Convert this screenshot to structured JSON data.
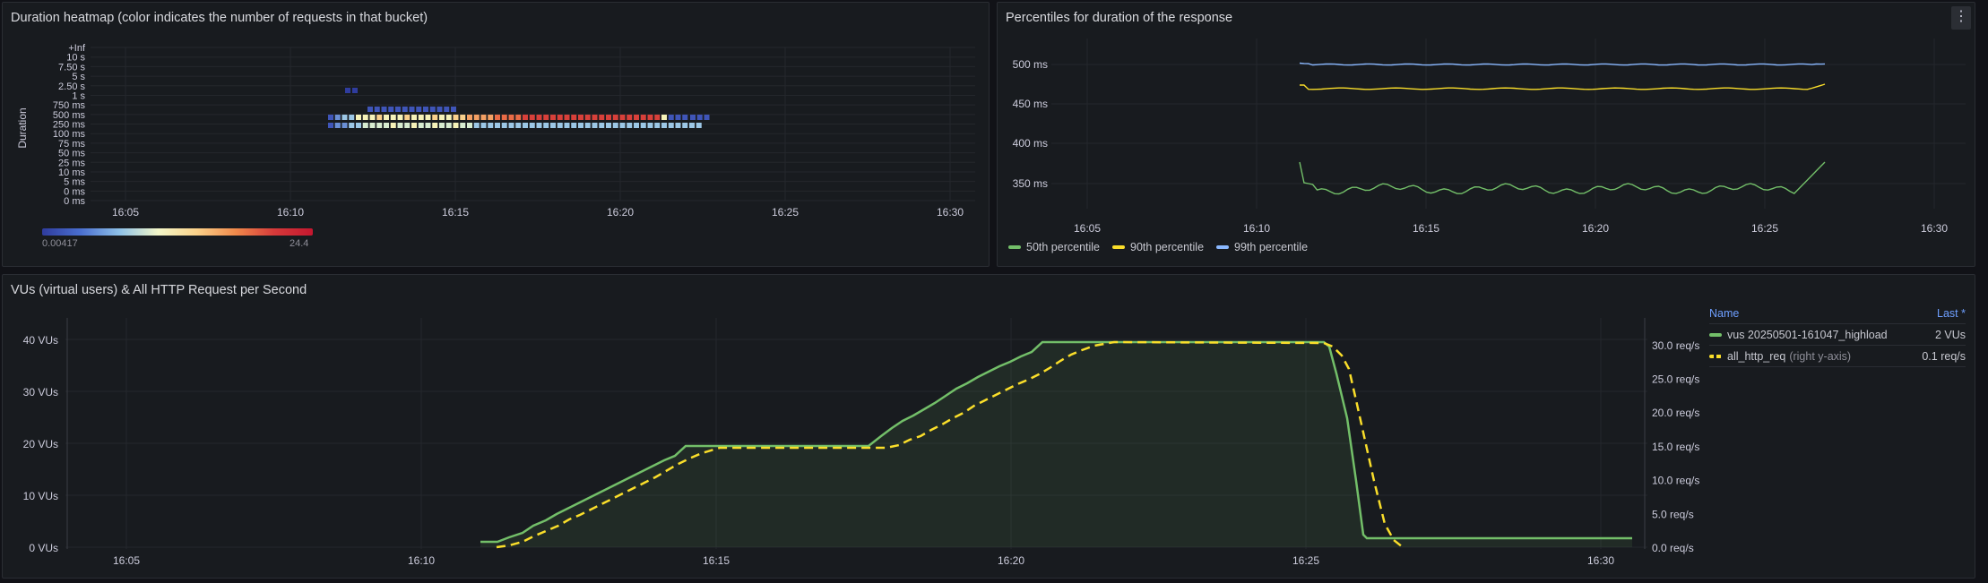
{
  "colors": {
    "p50": "#73bf69",
    "p90": "#fade2a",
    "p99": "#8ab8ff",
    "vus": "#73bf69",
    "reqs": "#fade2a"
  },
  "heatmap": {
    "title": "Duration heatmap (color indicates the number of requests in that bucket)",
    "y_axis_label": "Duration",
    "y_ticks": [
      "0 ms",
      "0 ms",
      "5 ms",
      "10 ms",
      "25 ms",
      "50 ms",
      "75 ms",
      "100 ms",
      "250 ms",
      "500 ms",
      "750 ms",
      "1 s",
      "2.50 s",
      "5 s",
      "7.50 s",
      "10 s",
      "+Inf"
    ],
    "x_ticks": [
      "16:05",
      "16:10",
      "16:15",
      "16:20",
      "16:25",
      "16:30"
    ],
    "scale_min": "0.00417",
    "scale_max": "24.4"
  },
  "percentiles": {
    "title": "Percentiles for duration of the response",
    "menu_icon": "⋮",
    "y_ticks": [
      "500 ms",
      "450 ms",
      "400 ms",
      "350 ms"
    ],
    "x_ticks": [
      "16:05",
      "16:10",
      "16:15",
      "16:20",
      "16:25",
      "16:30"
    ],
    "legend": [
      "50th percentile",
      "90th percentile",
      "99th percentile"
    ]
  },
  "vus": {
    "title": "VUs (virtual users) & All HTTP Request per Second",
    "y_left_ticks": [
      "40 VUs",
      "30 VUs",
      "20 VUs",
      "10 VUs",
      "0 VUs"
    ],
    "y_right_ticks": [
      "30.0 req/s",
      "25.0 req/s",
      "20.0 req/s",
      "15.0 req/s",
      "10.0 req/s",
      "5.0 req/s",
      "0.0 req/s"
    ],
    "x_ticks": [
      "16:05",
      "16:10",
      "16:15",
      "16:20",
      "16:25",
      "16:30"
    ],
    "legend_header_name": "Name",
    "legend_header_last": "Last *",
    "legend_rows": [
      {
        "name": "vus 20250501-161047_highload",
        "suffix": "",
        "last": "2 VUs"
      },
      {
        "name": "all_http_req",
        "suffix": "(right y-axis)",
        "last": "0.1 req/s"
      }
    ]
  }
}
